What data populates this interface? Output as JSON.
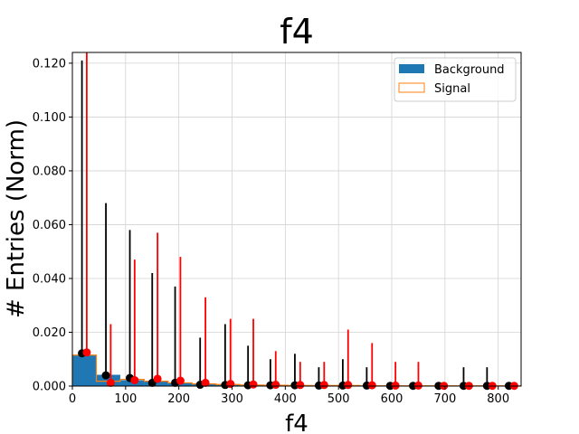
{
  "chart_data": {
    "type": "bar",
    "title": "f4",
    "xlabel": "f4",
    "ylabel": "# Entries (Norm)",
    "xlim": [
      0,
      843
    ],
    "ylim": [
      0,
      0.124
    ],
    "x_ticks": [
      0,
      100,
      200,
      300,
      400,
      500,
      600,
      700,
      800
    ],
    "y_ticks": [
      0.0,
      0.02,
      0.04,
      0.06,
      0.08,
      0.1,
      0.12
    ],
    "y_tick_labels": [
      "0.000",
      "0.020",
      "0.040",
      "0.060",
      "0.080",
      "0.100",
      "0.120"
    ],
    "grid": true,
    "legend_position": "top-right",
    "colors": {
      "background": "#1f77b4",
      "signal": "#ff7f0e",
      "background_marker": "#000000",
      "signal_marker": "#ff0000",
      "grid": "#d3d3d3"
    },
    "bin_edges": [
      0,
      45,
      90,
      135,
      180,
      225,
      270,
      315,
      360,
      405,
      450,
      495,
      540,
      585,
      630,
      675,
      720,
      765,
      810,
      843
    ],
    "series": [
      {
        "name": "Background",
        "style": "filled-histogram",
        "values": [
          0.0115,
          0.0042,
          0.0022,
          0.0018,
          0.0012,
          0.0008,
          0.0005,
          0.0004,
          0.0003,
          0.0002,
          0.0002,
          0.0002,
          0.0001,
          0.0001,
          0.0001,
          0.0001,
          0.0001,
          0.0001,
          0.0001
        ]
      },
      {
        "name": "Signal",
        "style": "step-histogram",
        "values": [
          0.0115,
          0.0018,
          0.0025,
          0.0018,
          0.0012,
          0.0008,
          0.0006,
          0.0004,
          0.0003,
          0.0002,
          0.0002,
          0.0002,
          0.0001,
          0.0001,
          0.0001,
          0.0001,
          0.0001,
          0.0001,
          0.0001
        ]
      }
    ],
    "points": [
      {
        "series": "Background",
        "marker": "black",
        "x": [
          18,
          63,
          108,
          150,
          193,
          240,
          287,
          330,
          372,
          418,
          463,
          508,
          553,
          597,
          640,
          688,
          735,
          779,
          820
        ],
        "y": [
          0.0122,
          0.004,
          0.003,
          0.0012,
          0.0012,
          0.0005,
          0.0004,
          0.0003,
          0.0003,
          0.0003,
          0.0002,
          0.0002,
          0.0002,
          0.0001,
          0.0001,
          0.0001,
          0.0001,
          0.0001,
          0.0001
        ],
        "err_up": [
          0.121,
          0.068,
          0.058,
          0.042,
          0.037,
          0.018,
          0.023,
          0.015,
          0.01,
          0.012,
          0.007,
          0.01,
          0.007,
          0.0005,
          0.0005,
          0.0005,
          0.007,
          0.007,
          0.0005
        ]
      },
      {
        "series": "Signal",
        "marker": "red",
        "x": [
          27,
          72,
          117,
          160,
          203,
          250,
          297,
          340,
          382,
          428,
          473,
          518,
          563,
          607,
          650,
          698,
          745,
          789,
          830
        ],
        "y": [
          0.0125,
          0.0012,
          0.0022,
          0.0027,
          0.002,
          0.0012,
          0.0008,
          0.0006,
          0.0005,
          0.0004,
          0.0004,
          0.0004,
          0.0003,
          0.0002,
          0.0002,
          0.0001,
          0.0001,
          0.0001,
          0.0001
        ],
        "err_up": [
          0.124,
          0.023,
          0.047,
          0.057,
          0.048,
          0.033,
          0.025,
          0.025,
          0.013,
          0.009,
          0.009,
          0.021,
          0.016,
          0.009,
          0.009,
          0.0005,
          0.0005,
          0.0005,
          0.0005
        ]
      }
    ]
  }
}
